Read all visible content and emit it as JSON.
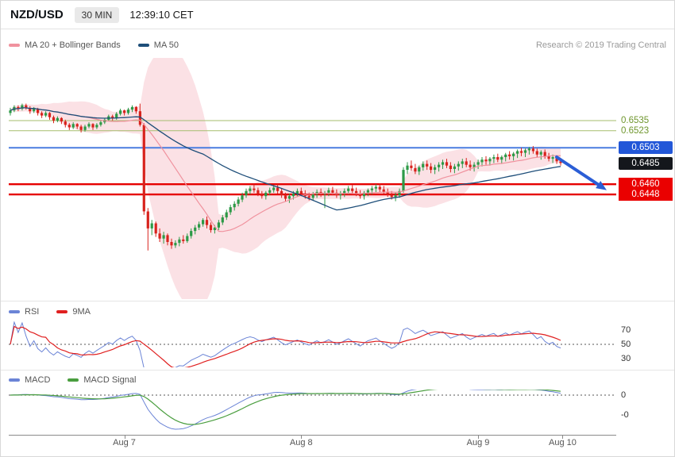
{
  "header": {
    "symbol": "NZD/USD",
    "interval": "30 MIN",
    "time": "12:39:10 CET"
  },
  "attribution": "Research © 2019 Trading Central",
  "legends": {
    "main": [
      {
        "label": "MA 20 + Bollinger Bands",
        "color": "#f0929e"
      },
      {
        "label": "MA 50",
        "color": "#1e4e79"
      }
    ],
    "rsi": [
      {
        "label": "RSI",
        "color": "#6b84d6"
      },
      {
        "label": "9MA",
        "color": "#e02020"
      }
    ],
    "macd": [
      {
        "label": "MACD",
        "color": "#6b84d6"
      },
      {
        "label": "MACD Signal",
        "color": "#4a9e3f"
      }
    ]
  },
  "chart_data": {
    "type": "candlestick",
    "symbol": "NZD/USD",
    "interval": "30 MIN",
    "colors": {
      "up_candle": "#2c9a47",
      "down_candle": "#d8231d",
      "ma20": "#f0929e",
      "bollinger_fill": "#f6bcc6",
      "ma50": "#1e4e79",
      "rsi": "#6b84d6",
      "rsi_ma": "#e02020",
      "macd": "#6b84d6",
      "macd_signal": "#4a9e3f"
    },
    "indicators": {
      "ma20_bollinger": {
        "type": "sma",
        "period": 20,
        "bands": "2sd"
      },
      "ma50": {
        "type": "sma",
        "period": 50
      },
      "rsi": {
        "period": 14,
        "ma": 9
      },
      "macd": {
        "fast": 12,
        "slow": 26,
        "signal": 9
      }
    },
    "levels": [
      {
        "label": "0.6535",
        "value": 0.6535,
        "style": "green",
        "line": true,
        "line_color": "#a6bd6e"
      },
      {
        "label": "0.6523",
        "value": 0.6523,
        "style": "green",
        "line": true,
        "line_color": "#a6bd6e"
      },
      {
        "label": "0.6503",
        "value": 0.6503,
        "style": "blue",
        "line": true,
        "line_color": "#4a7de0"
      },
      {
        "label": "0.6485",
        "value": 0.6485,
        "style": "black",
        "line": false,
        "line_color": null
      },
      {
        "label": "0.6460",
        "value": 0.646,
        "style": "red",
        "line": true,
        "line_color": "#e60000"
      },
      {
        "label": "0.6448",
        "value": 0.6448,
        "style": "red",
        "line": true,
        "line_color": "#e60000"
      }
    ],
    "annotation_arrow": {
      "from_price": 0.6492,
      "to_price": 0.6453,
      "color": "#2b5ed6"
    },
    "x_ticks": [
      {
        "label": "Aug 7",
        "index": 29
      },
      {
        "label": "Aug 8",
        "index": 74
      },
      {
        "label": "Aug 9",
        "index": 119
      },
      {
        "label": "Aug 10",
        "index": 140.5
      }
    ],
    "rsi_ticks": [
      {
        "label": "70",
        "value": 70
      },
      {
        "label": "50",
        "value": 50
      },
      {
        "label": "30",
        "value": 30
      }
    ],
    "macd_ticks": [
      {
        "label": "0"
      },
      {
        "label": "-0"
      }
    ],
    "candles": [
      [
        0.6544,
        0.655,
        0.6541,
        0.6547
      ],
      [
        0.6547,
        0.6553,
        0.6545,
        0.6551
      ],
      [
        0.6551,
        0.6553,
        0.6546,
        0.6549
      ],
      [
        0.6549,
        0.6555,
        0.6547,
        0.6553
      ],
      [
        0.6553,
        0.6555,
        0.6548,
        0.655
      ],
      [
        0.655,
        0.6552,
        0.6543,
        0.6546
      ],
      [
        0.6546,
        0.6551,
        0.6544,
        0.6549
      ],
      [
        0.6549,
        0.655,
        0.6541,
        0.6544
      ],
      [
        0.6544,
        0.6546,
        0.6538,
        0.6541
      ],
      [
        0.6541,
        0.6546,
        0.6539,
        0.6544
      ],
      [
        0.6544,
        0.6545,
        0.6536,
        0.6539
      ],
      [
        0.6539,
        0.6541,
        0.6532,
        0.6535
      ],
      [
        0.6535,
        0.654,
        0.6533,
        0.6538
      ],
      [
        0.6538,
        0.6539,
        0.6531,
        0.6534
      ],
      [
        0.6534,
        0.6536,
        0.6527,
        0.653
      ],
      [
        0.653,
        0.6532,
        0.6524,
        0.6527
      ],
      [
        0.6527,
        0.6533,
        0.6525,
        0.6531
      ],
      [
        0.6531,
        0.6532,
        0.6525,
        0.6528
      ],
      [
        0.6528,
        0.653,
        0.6521,
        0.6524
      ],
      [
        0.6524,
        0.653,
        0.6522,
        0.6528
      ],
      [
        0.6528,
        0.6533,
        0.6526,
        0.6531
      ],
      [
        0.6531,
        0.6532,
        0.6524,
        0.6527
      ],
      [
        0.6527,
        0.6532,
        0.6525,
        0.653
      ],
      [
        0.653,
        0.6535,
        0.6528,
        0.6533
      ],
      [
        0.6533,
        0.6538,
        0.6531,
        0.6536
      ],
      [
        0.6536,
        0.6542,
        0.6534,
        0.654
      ],
      [
        0.654,
        0.6542,
        0.6535,
        0.6538
      ],
      [
        0.6538,
        0.6545,
        0.6536,
        0.6543
      ],
      [
        0.6543,
        0.6549,
        0.6541,
        0.6547
      ],
      [
        0.6547,
        0.6548,
        0.6541,
        0.6544
      ],
      [
        0.6544,
        0.655,
        0.6542,
        0.6548
      ],
      [
        0.6548,
        0.6553,
        0.6545,
        0.6551
      ],
      [
        0.6551,
        0.6552,
        0.6543,
        0.6546
      ],
      [
        0.6546,
        0.6555,
        0.6528,
        0.653
      ],
      [
        0.653,
        0.6532,
        0.6424,
        0.6428
      ],
      [
        0.6428,
        0.6432,
        0.6382,
        0.6408
      ],
      [
        0.6408,
        0.6418,
        0.64,
        0.6414
      ],
      [
        0.6414,
        0.6416,
        0.6398,
        0.6402
      ],
      [
        0.6402,
        0.6408,
        0.6392,
        0.6396
      ],
      [
        0.6396,
        0.6404,
        0.639,
        0.64
      ],
      [
        0.64,
        0.6402,
        0.6388,
        0.6392
      ],
      [
        0.6392,
        0.6396,
        0.6384,
        0.6388
      ],
      [
        0.6388,
        0.6394,
        0.6385,
        0.6391
      ],
      [
        0.6391,
        0.6398,
        0.6387,
        0.6395
      ],
      [
        0.6395,
        0.64,
        0.639,
        0.6393
      ],
      [
        0.6393,
        0.6402,
        0.6391,
        0.6399
      ],
      [
        0.6399,
        0.6408,
        0.6396,
        0.6405
      ],
      [
        0.6405,
        0.6412,
        0.6401,
        0.6409
      ],
      [
        0.6409,
        0.6416,
        0.6406,
        0.6413
      ],
      [
        0.6413,
        0.642,
        0.641,
        0.6418
      ],
      [
        0.6418,
        0.6422,
        0.6408,
        0.6412
      ],
      [
        0.6412,
        0.6415,
        0.6403,
        0.6406
      ],
      [
        0.6406,
        0.6412,
        0.6402,
        0.6409
      ],
      [
        0.6409,
        0.6418,
        0.6406,
        0.6415
      ],
      [
        0.6415,
        0.6424,
        0.6412,
        0.6421
      ],
      [
        0.6421,
        0.643,
        0.6418,
        0.6427
      ],
      [
        0.6427,
        0.6436,
        0.6424,
        0.6433
      ],
      [
        0.6433,
        0.644,
        0.6429,
        0.6437
      ],
      [
        0.6437,
        0.6445,
        0.6434,
        0.6442
      ],
      [
        0.6442,
        0.645,
        0.6439,
        0.6447
      ],
      [
        0.6447,
        0.6455,
        0.6444,
        0.6452
      ],
      [
        0.6452,
        0.6458,
        0.6448,
        0.6455
      ],
      [
        0.6455,
        0.646,
        0.645,
        0.6453
      ],
      [
        0.6453,
        0.6456,
        0.6446,
        0.6449
      ],
      [
        0.6449,
        0.6452,
        0.6443,
        0.6446
      ],
      [
        0.6446,
        0.6452,
        0.6442,
        0.645
      ],
      [
        0.645,
        0.6456,
        0.6447,
        0.6453
      ],
      [
        0.6453,
        0.6459,
        0.645,
        0.6456
      ],
      [
        0.6456,
        0.646,
        0.6449,
        0.6452
      ],
      [
        0.6452,
        0.6455,
        0.6444,
        0.6447
      ],
      [
        0.6447,
        0.645,
        0.644,
        0.6443
      ],
      [
        0.6443,
        0.6449,
        0.6438,
        0.6446
      ],
      [
        0.6446,
        0.6452,
        0.6442,
        0.6449
      ],
      [
        0.6449,
        0.6455,
        0.6445,
        0.6452
      ],
      [
        0.6452,
        0.6456,
        0.6446,
        0.6449
      ],
      [
        0.6449,
        0.6453,
        0.6443,
        0.6446
      ],
      [
        0.6446,
        0.645,
        0.6441,
        0.6444
      ],
      [
        0.6444,
        0.6451,
        0.6441,
        0.6448
      ],
      [
        0.6448,
        0.6454,
        0.6444,
        0.6451
      ],
      [
        0.6451,
        0.6455,
        0.6445,
        0.6448
      ],
      [
        0.6448,
        0.6452,
        0.6432,
        0.645
      ],
      [
        0.645,
        0.6456,
        0.6446,
        0.6453
      ],
      [
        0.6453,
        0.6457,
        0.6447,
        0.645
      ],
      [
        0.645,
        0.6454,
        0.6444,
        0.6447
      ],
      [
        0.6447,
        0.6452,
        0.6442,
        0.6449
      ],
      [
        0.6449,
        0.6455,
        0.6445,
        0.6452
      ],
      [
        0.6452,
        0.6458,
        0.6448,
        0.6455
      ],
      [
        0.6455,
        0.6459,
        0.6449,
        0.6452
      ],
      [
        0.6452,
        0.6456,
        0.6446,
        0.6449
      ],
      [
        0.6449,
        0.6453,
        0.6443,
        0.6446
      ],
      [
        0.6446,
        0.6452,
        0.6442,
        0.645
      ],
      [
        0.645,
        0.6455,
        0.6446,
        0.6453
      ],
      [
        0.6453,
        0.6458,
        0.6448,
        0.6455
      ],
      [
        0.6455,
        0.646,
        0.645,
        0.6457
      ],
      [
        0.6457,
        0.6461,
        0.6451,
        0.6454
      ],
      [
        0.6454,
        0.6458,
        0.6448,
        0.6451
      ],
      [
        0.6451,
        0.6455,
        0.6445,
        0.6448
      ],
      [
        0.6448,
        0.6452,
        0.6442,
        0.6445
      ],
      [
        0.6445,
        0.645,
        0.644,
        0.6447
      ],
      [
        0.6447,
        0.6455,
        0.6444,
        0.6452
      ],
      [
        0.6452,
        0.648,
        0.645,
        0.6477
      ],
      [
        0.6477,
        0.6486,
        0.6472,
        0.6482
      ],
      [
        0.6482,
        0.6488,
        0.6476,
        0.6479
      ],
      [
        0.6479,
        0.6484,
        0.6472,
        0.6475
      ],
      [
        0.6475,
        0.6482,
        0.6471,
        0.648
      ],
      [
        0.648,
        0.6487,
        0.6476,
        0.6484
      ],
      [
        0.6484,
        0.6488,
        0.6477,
        0.6481
      ],
      [
        0.6481,
        0.6485,
        0.6473,
        0.6477
      ],
      [
        0.6477,
        0.6483,
        0.6472,
        0.648
      ],
      [
        0.648,
        0.6486,
        0.6475,
        0.6483
      ],
      [
        0.6483,
        0.6489,
        0.6478,
        0.6486
      ],
      [
        0.6486,
        0.649,
        0.6479,
        0.6482
      ],
      [
        0.6482,
        0.6486,
        0.6474,
        0.6478
      ],
      [
        0.6478,
        0.6484,
        0.6473,
        0.6481
      ],
      [
        0.6481,
        0.6487,
        0.6476,
        0.6484
      ],
      [
        0.6484,
        0.649,
        0.6479,
        0.6487
      ],
      [
        0.6487,
        0.6491,
        0.648,
        0.6483
      ],
      [
        0.6483,
        0.6488,
        0.6476,
        0.648
      ],
      [
        0.648,
        0.6486,
        0.6475,
        0.6483
      ],
      [
        0.6483,
        0.6489,
        0.6478,
        0.6486
      ],
      [
        0.6486,
        0.6492,
        0.6481,
        0.6489
      ],
      [
        0.6489,
        0.6493,
        0.6483,
        0.6487
      ],
      [
        0.6487,
        0.6492,
        0.6482,
        0.649
      ],
      [
        0.649,
        0.6495,
        0.6485,
        0.6492
      ],
      [
        0.6492,
        0.6496,
        0.6486,
        0.6489
      ],
      [
        0.6489,
        0.6494,
        0.6484,
        0.6492
      ],
      [
        0.6492,
        0.6497,
        0.6487,
        0.6495
      ],
      [
        0.6495,
        0.6499,
        0.6489,
        0.6493
      ],
      [
        0.6493,
        0.6498,
        0.6488,
        0.6496
      ],
      [
        0.6496,
        0.6501,
        0.6491,
        0.6499
      ],
      [
        0.6499,
        0.6503,
        0.6493,
        0.6497
      ],
      [
        0.6497,
        0.6502,
        0.6492,
        0.65
      ],
      [
        0.65,
        0.6504,
        0.6495,
        0.6502
      ],
      [
        0.6502,
        0.6505,
        0.6496,
        0.6499
      ],
      [
        0.6499,
        0.6502,
        0.6492,
        0.6495
      ],
      [
        0.6495,
        0.65,
        0.6489,
        0.6498
      ],
      [
        0.6498,
        0.6501,
        0.649,
        0.6493
      ],
      [
        0.6493,
        0.6497,
        0.6487,
        0.649
      ],
      [
        0.649,
        0.6495,
        0.6485,
        0.6492
      ],
      [
        0.6492,
        0.6494,
        0.6484,
        0.6487
      ],
      [
        0.6487,
        0.6491,
        0.6482,
        0.6485
      ]
    ]
  }
}
